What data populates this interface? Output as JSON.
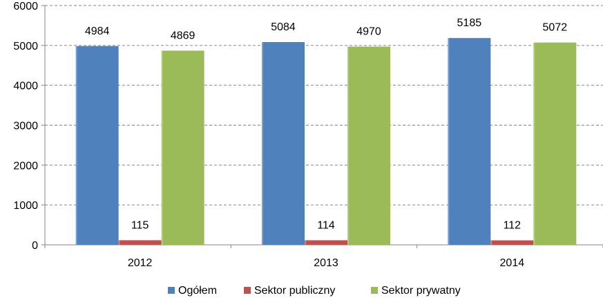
{
  "chart_data": {
    "type": "bar",
    "categories": [
      "2012",
      "2013",
      "2014"
    ],
    "series": [
      {
        "name": "Ogółem",
        "values": [
          4984,
          5084,
          5185
        ],
        "color": "#4F81BD"
      },
      {
        "name": "Sektor publiczny",
        "values": [
          115,
          114,
          112
        ],
        "color": "#C0504D"
      },
      {
        "name": "Sektor prywatny",
        "values": [
          4869,
          4970,
          5072
        ],
        "color": "#9BBB59"
      }
    ],
    "title": "",
    "xlabel": "",
    "ylabel": "",
    "ylim": [
      0,
      6000
    ],
    "yticks": [
      0,
      1000,
      2000,
      3000,
      4000,
      5000,
      6000
    ],
    "grid": true,
    "legend_position": "bottom"
  }
}
